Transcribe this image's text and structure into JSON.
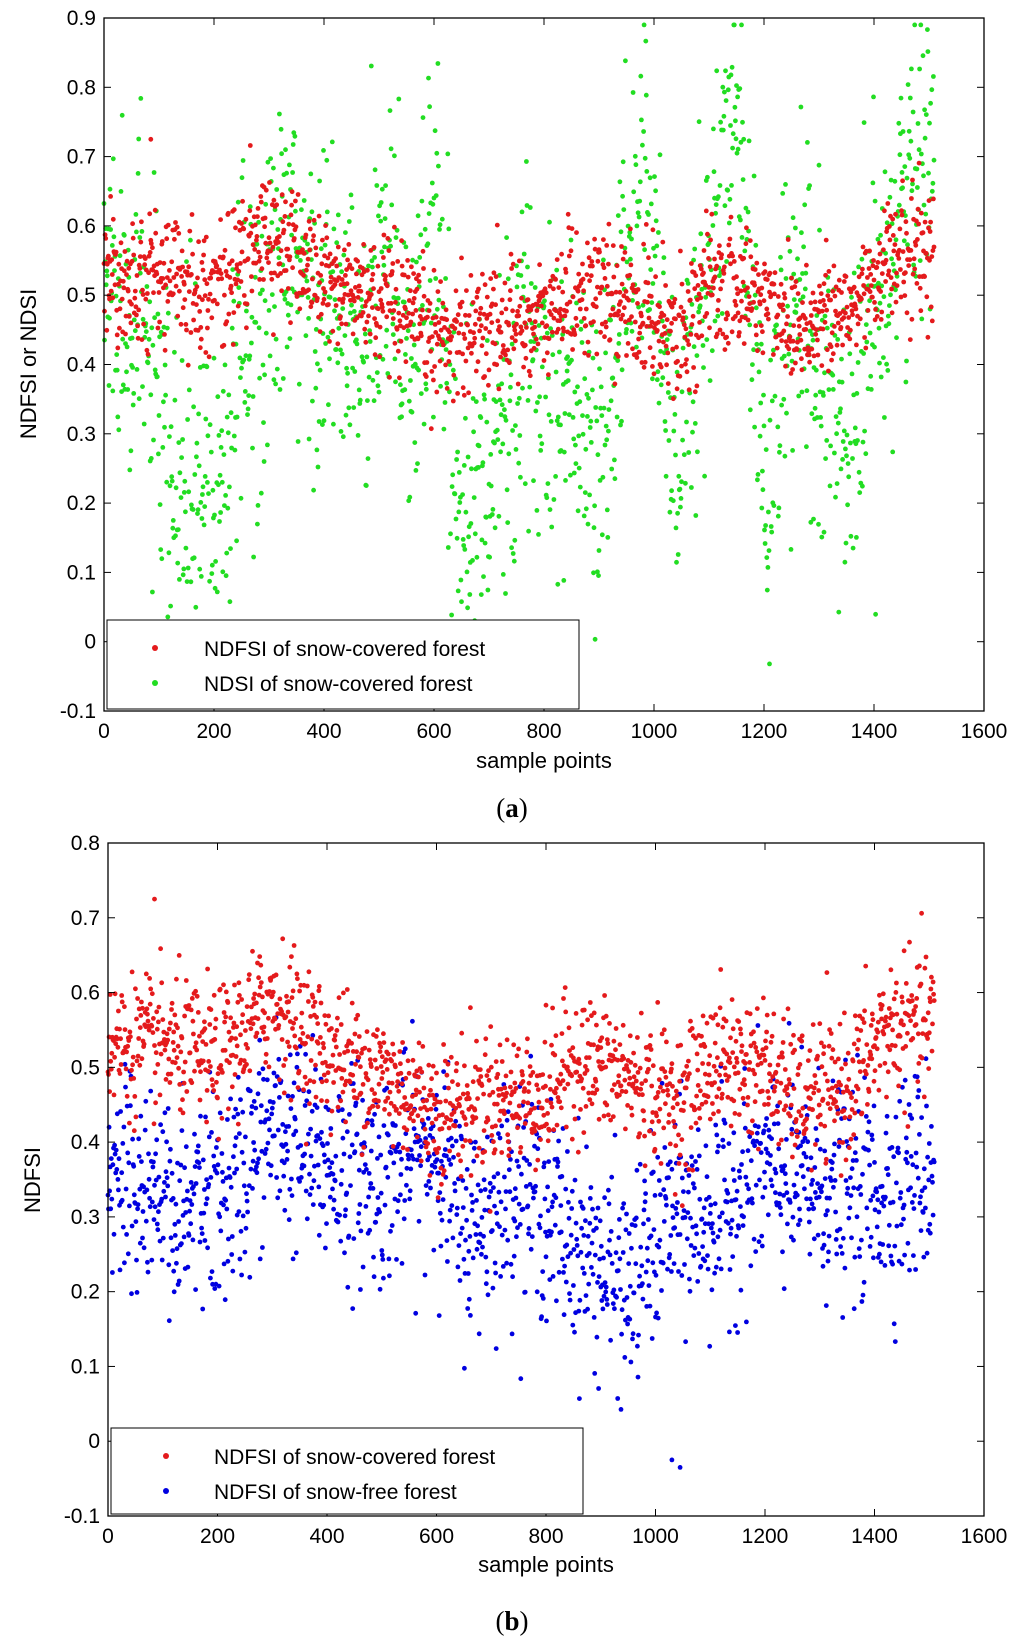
{
  "chart_data": [
    {
      "type": "scatter",
      "caption_open": "(",
      "caption_letter": "a",
      "caption_close": ")",
      "xlabel": "sample points",
      "ylabel": "NDFSI or NDSI",
      "xlim": [
        0,
        1600
      ],
      "ylim": [
        -0.1,
        0.9
      ],
      "xticks": [
        0,
        200,
        400,
        600,
        800,
        1000,
        1200,
        1400,
        1600
      ],
      "yticks": [
        -0.1,
        0,
        0.1,
        0.2,
        0.3,
        0.4,
        0.5,
        0.6,
        0.7,
        0.8,
        0.9
      ],
      "grid": false,
      "legend_position": "bottom-left",
      "n_points": 1510,
      "series": [
        {
          "name": "NDFSI of snow-covered forest",
          "color": "#e41a1c",
          "trend": [
            [
              0,
              0.53
            ],
            [
              100,
              0.53
            ],
            [
              200,
              0.51
            ],
            [
              300,
              0.59
            ],
            [
              400,
              0.52
            ],
            [
              500,
              0.49
            ],
            [
              600,
              0.44
            ],
            [
              700,
              0.46
            ],
            [
              800,
              0.46
            ],
            [
              850,
              0.51
            ],
            [
              900,
              0.5
            ],
            [
              1000,
              0.47
            ],
            [
              1050,
              0.45
            ],
            [
              1100,
              0.51
            ],
            [
              1200,
              0.5
            ],
            [
              1250,
              0.46
            ],
            [
              1350,
              0.47
            ],
            [
              1420,
              0.55
            ],
            [
              1510,
              0.56
            ]
          ],
          "spread": 0.045,
          "outliers": [
            [
              85,
              0.725
            ]
          ]
        },
        {
          "name": "NDSI of snow-covered forest",
          "color": "#22dd22",
          "trend": [
            [
              0,
              0.52
            ],
            [
              60,
              0.5
            ],
            [
              120,
              0.22
            ],
            [
              200,
              0.2
            ],
            [
              260,
              0.42
            ],
            [
              320,
              0.55
            ],
            [
              400,
              0.48
            ],
            [
              480,
              0.4
            ],
            [
              520,
              0.62
            ],
            [
              560,
              0.35
            ],
            [
              600,
              0.64
            ],
            [
              640,
              0.25
            ],
            [
              700,
              0.22
            ],
            [
              760,
              0.4
            ],
            [
              840,
              0.38
            ],
            [
              900,
              0.25
            ],
            [
              980,
              0.7
            ],
            [
              1040,
              0.25
            ],
            [
              1090,
              0.5
            ],
            [
              1150,
              0.77
            ],
            [
              1200,
              0.22
            ],
            [
              1260,
              0.5
            ],
            [
              1300,
              0.35
            ],
            [
              1360,
              0.3
            ],
            [
              1420,
              0.55
            ],
            [
              1510,
              0.78
            ]
          ],
          "spread": 0.12
        }
      ]
    },
    {
      "type": "scatter",
      "caption_open": "(",
      "caption_letter": "b",
      "caption_close": ")",
      "xlabel": "sample points",
      "ylabel": "NDFSI",
      "xlim": [
        0,
        1600
      ],
      "ylim": [
        -0.1,
        0.8
      ],
      "xticks": [
        0,
        200,
        400,
        600,
        800,
        1000,
        1200,
        1400,
        1600
      ],
      "yticks": [
        -0.1,
        0,
        0.1,
        0.2,
        0.3,
        0.4,
        0.5,
        0.6,
        0.7,
        0.8
      ],
      "grid": false,
      "legend_position": "bottom-left",
      "n_points": 1510,
      "series": [
        {
          "name": "NDFSI of snow-covered forest",
          "color": "#e41a1c",
          "trend": [
            [
              0,
              0.53
            ],
            [
              100,
              0.53
            ],
            [
              200,
              0.51
            ],
            [
              300,
              0.59
            ],
            [
              400,
              0.52
            ],
            [
              500,
              0.49
            ],
            [
              600,
              0.44
            ],
            [
              700,
              0.46
            ],
            [
              800,
              0.46
            ],
            [
              850,
              0.51
            ],
            [
              900,
              0.5
            ],
            [
              1000,
              0.47
            ],
            [
              1050,
              0.45
            ],
            [
              1100,
              0.51
            ],
            [
              1200,
              0.5
            ],
            [
              1250,
              0.46
            ],
            [
              1350,
              0.47
            ],
            [
              1420,
              0.55
            ],
            [
              1510,
              0.56
            ]
          ],
          "spread": 0.045,
          "outliers": [
            [
              85,
              0.725
            ]
          ]
        },
        {
          "name": "NDFSI of snow-free forest",
          "color": "#0000e0",
          "trend": [
            [
              0,
              0.36
            ],
            [
              100,
              0.33
            ],
            [
              200,
              0.31
            ],
            [
              300,
              0.42
            ],
            [
              400,
              0.37
            ],
            [
              500,
              0.35
            ],
            [
              600,
              0.4
            ],
            [
              650,
              0.28
            ],
            [
              750,
              0.35
            ],
            [
              850,
              0.27
            ],
            [
              950,
              0.2
            ],
            [
              1020,
              0.3
            ],
            [
              1100,
              0.3
            ],
            [
              1200,
              0.36
            ],
            [
              1300,
              0.34
            ],
            [
              1400,
              0.33
            ],
            [
              1510,
              0.37
            ]
          ],
          "spread": 0.07,
          "outliers": [
            [
              1030,
              -0.025
            ],
            [
              1045,
              -0.035
            ]
          ]
        }
      ]
    }
  ]
}
